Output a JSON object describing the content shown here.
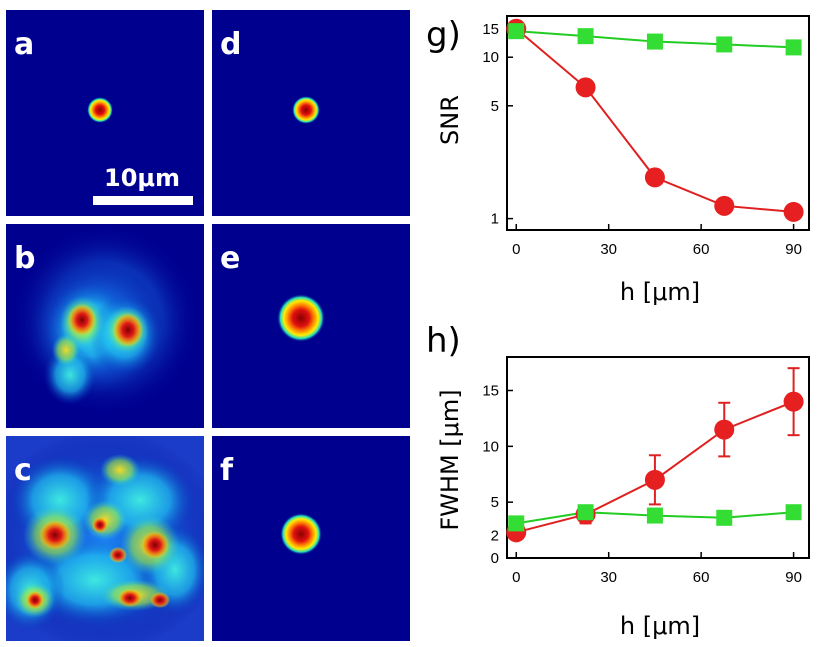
{
  "panels": [
    {
      "label": "a",
      "type": "single"
    },
    {
      "label": "d",
      "type": "single"
    },
    {
      "label": "b",
      "type": "double"
    },
    {
      "label": "e",
      "type": "medium"
    },
    {
      "label": "c",
      "type": "scattered"
    },
    {
      "label": "f",
      "type": "medium"
    }
  ],
  "scalebar": {
    "label": "10μm"
  },
  "colors": {
    "background": "#00008f",
    "red_series": "#e62020",
    "green_series": "#33dd33",
    "red_line": "#e02020",
    "green_line": "#22cc22"
  },
  "chart_data": [
    {
      "type": "line",
      "label": "g)",
      "xlabel": "h [μm]",
      "ylabel": "SNR",
      "yscale": "log",
      "xlim": [
        -3,
        95
      ],
      "ylim": [
        0.85,
        18
      ],
      "xticks": [
        0,
        30,
        60,
        90
      ],
      "yticks": [
        1,
        5,
        10,
        15
      ],
      "grid": false,
      "series": [
        {
          "marker": "circle",
          "color": "#e62020",
          "x": [
            0,
            22.5,
            45,
            67.5,
            90
          ],
          "y": [
            15,
            6.5,
            1.8,
            1.2,
            1.1
          ]
        },
        {
          "marker": "square",
          "color": "#33dd33",
          "x": [
            0,
            22.5,
            45,
            67.5,
            90
          ],
          "y": [
            14.5,
            13.5,
            12.5,
            12,
            11.5
          ]
        }
      ]
    },
    {
      "type": "line",
      "label": "h)",
      "xlabel": "h [μm]",
      "ylabel": "FWHM [μm]",
      "yscale": "linear",
      "xlim": [
        -3,
        95
      ],
      "ylim": [
        0,
        18
      ],
      "xticks": [
        0,
        30,
        60,
        90
      ],
      "yticks": [
        0,
        2,
        5,
        10,
        15
      ],
      "grid": false,
      "series": [
        {
          "marker": "circle",
          "color": "#e62020",
          "x": [
            0,
            22.5,
            45,
            67.5,
            90
          ],
          "y": [
            2.3,
            3.9,
            7,
            11.5,
            14
          ],
          "yerr": [
            0.3,
            0.8,
            2.2,
            2.4,
            3.0
          ]
        },
        {
          "marker": "square",
          "color": "#33dd33",
          "x": [
            0,
            22.5,
            45,
            67.5,
            90
          ],
          "y": [
            3.1,
            4.1,
            3.8,
            3.6,
            4.1
          ]
        }
      ]
    }
  ]
}
